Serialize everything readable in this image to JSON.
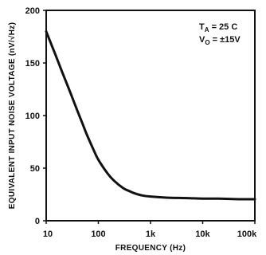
{
  "chart_data": {
    "type": "line",
    "xlabel": "FREQUENCY (Hz)",
    "ylabel": "EQUIVALENT INPUT NOISE VOLTAGE (nV/√Hz)",
    "x_scale": "log",
    "xlim": [
      10,
      100000
    ],
    "ylim": [
      0,
      200
    ],
    "x_ticks": [
      {
        "value": 10,
        "label": "10"
      },
      {
        "value": 100,
        "label": "100"
      },
      {
        "value": 1000,
        "label": "1k"
      },
      {
        "value": 10000,
        "label": "10k"
      },
      {
        "value": 100000,
        "label": "100k"
      }
    ],
    "y_ticks": [
      {
        "value": 0,
        "label": "0"
      },
      {
        "value": 50,
        "label": "50"
      },
      {
        "value": 100,
        "label": "100"
      },
      {
        "value": 150,
        "label": "150"
      },
      {
        "value": 200,
        "label": "200"
      }
    ],
    "grid": false,
    "legend": "none",
    "annotations": [
      {
        "parts": [
          "T",
          "A",
          " = 25  C"
        ]
      },
      {
        "parts": [
          "V",
          "O",
          " = ±15V"
        ]
      }
    ],
    "series": [
      {
        "x": [
          10,
          12,
          15,
          20,
          25,
          30,
          40,
          50,
          60,
          80,
          100,
          150,
          200,
          300,
          400,
          500,
          700,
          1000,
          2000,
          5000,
          10000,
          20000,
          50000,
          100000
        ],
        "y": [
          180,
          170,
          158,
          142,
          130,
          120,
          104,
          92,
          82,
          68,
          58,
          45,
          38,
          31,
          28,
          26,
          24,
          23,
          22,
          21.5,
          21,
          21,
          20.5,
          20.5
        ]
      }
    ]
  }
}
